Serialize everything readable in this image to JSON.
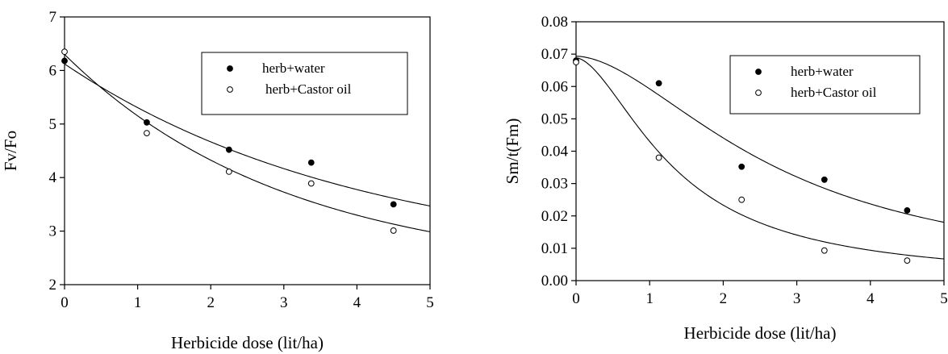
{
  "chart_data": [
    {
      "type": "scatter",
      "title": "",
      "xlabel": "Herbicide dose (lit/ha)",
      "ylabel": "Fv/Fo",
      "xlim": [
        0,
        5
      ],
      "ylim": [
        2,
        7
      ],
      "xticks": [
        "0",
        "1",
        "2",
        "3",
        "4",
        "5"
      ],
      "yticks": [
        "2",
        "3",
        "4",
        "5",
        "6",
        "7"
      ],
      "grid": false,
      "legend_position": "upper-right",
      "series": [
        {
          "name": "herb+water",
          "marker": "filled-circle",
          "x": [
            0,
            1.125,
            2.25,
            3.375,
            4.5
          ],
          "y": [
            6.18,
            5.03,
            4.52,
            4.28,
            3.5
          ],
          "fit": "curve"
        },
        {
          "name": "herb+Castor oil",
          "marker": "open-circle",
          "x": [
            0,
            1.125,
            2.25,
            3.375,
            4.5
          ],
          "y": [
            6.35,
            4.83,
            4.11,
            3.89,
            3.01
          ],
          "fit": "curve"
        }
      ]
    },
    {
      "type": "scatter",
      "title": "",
      "xlabel": "Herbicide dose (lit/ha)",
      "ylabel": "Sm/t(Fm)",
      "xlim": [
        0,
        5
      ],
      "ylim": [
        0,
        0.08
      ],
      "xticks": [
        "0",
        "1",
        "2",
        "3",
        "4",
        "5"
      ],
      "yticks": [
        "0.00",
        "0.01",
        "0.02",
        "0.03",
        "0.04",
        "0.05",
        "0.06",
        "0.07",
        "0.08"
      ],
      "grid": false,
      "legend_position": "upper-right",
      "series": [
        {
          "name": "herb+water",
          "marker": "filled-circle",
          "x": [
            0,
            1.125,
            2.25,
            3.375,
            4.5
          ],
          "y": [
            0.068,
            0.061,
            0.0352,
            0.0312,
            0.0217
          ],
          "fit": "curve"
        },
        {
          "name": "herb+Castor oil",
          "marker": "open-circle",
          "x": [
            0,
            1.125,
            2.25,
            3.375,
            4.5
          ],
          "y": [
            0.0675,
            0.038,
            0.025,
            0.0093,
            0.0062
          ],
          "fit": "curve"
        }
      ]
    }
  ]
}
